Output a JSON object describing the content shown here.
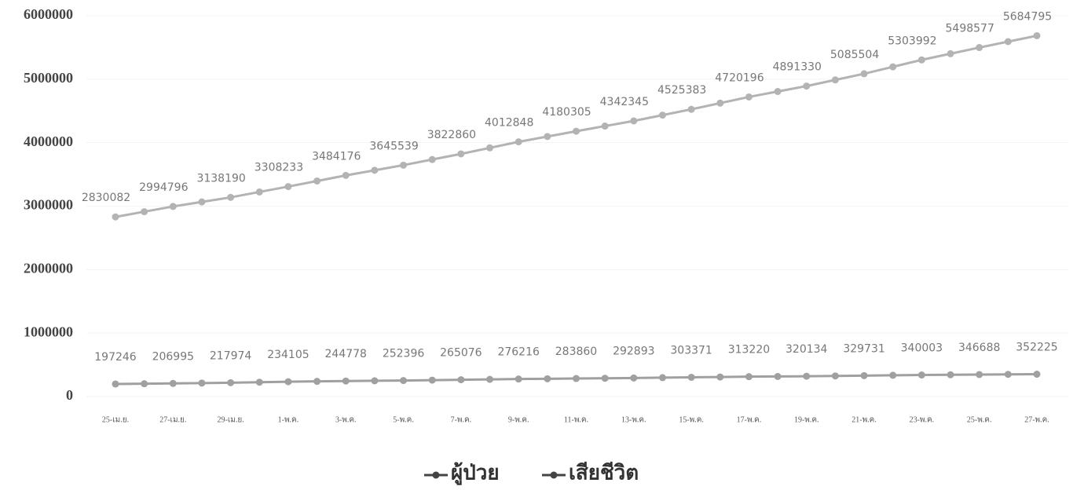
{
  "chart_data": {
    "type": "line",
    "categories": [
      "25-เม.ย.",
      null,
      "27-เม.ย.",
      null,
      "29-เม.ย.",
      null,
      "1-พ.ค.",
      null,
      "3-พ.ค.",
      null,
      "5-พ.ค.",
      null,
      "7-พ.ค.",
      null,
      "9-พ.ค.",
      null,
      "11-พ.ค.",
      null,
      "13-พ.ค.",
      null,
      "15-พ.ค.",
      null,
      "17-พ.ค.",
      null,
      "19-พ.ค.",
      null,
      "21-พ.ค.",
      null,
      "23-พ.ค.",
      null,
      "25-พ.ค.",
      null,
      "27-พ.ค."
    ],
    "series": [
      {
        "name": "ผู้ป่วย",
        "color": "#b3b3b3",
        "values": [
          2830082,
          2912439,
          2994796,
          3066493,
          3138190,
          3223212,
          3308233,
          3396205,
          3484176,
          3564858,
          3645539,
          3734200,
          3822860,
          3917854,
          4012848,
          4096577,
          4180305,
          4261325,
          4342345,
          4433864,
          4525383,
          4622790,
          4720196,
          4805763,
          4891330,
          4988417,
          5085504,
          5194748,
          5303992,
          5401285,
          5498577,
          5591686,
          5684795
        ]
      },
      {
        "name": "เสียชีวิต",
        "color": "#a0a0a0",
        "values": [
          197246,
          202121,
          206995,
          212485,
          217974,
          226040,
          234105,
          239442,
          244778,
          248587,
          252396,
          258736,
          265076,
          270646,
          276216,
          280038,
          283860,
          288377,
          292893,
          298132,
          303371,
          308296,
          313220,
          316677,
          320134,
          324933,
          329731,
          334867,
          340003,
          343346,
          346688,
          349457,
          352225
        ]
      }
    ],
    "ylim": [
      0,
      6000000
    ],
    "yticks": [
      0,
      1000000,
      2000000,
      3000000,
      4000000,
      5000000,
      6000000
    ],
    "grid": true,
    "legend": "bottom"
  }
}
